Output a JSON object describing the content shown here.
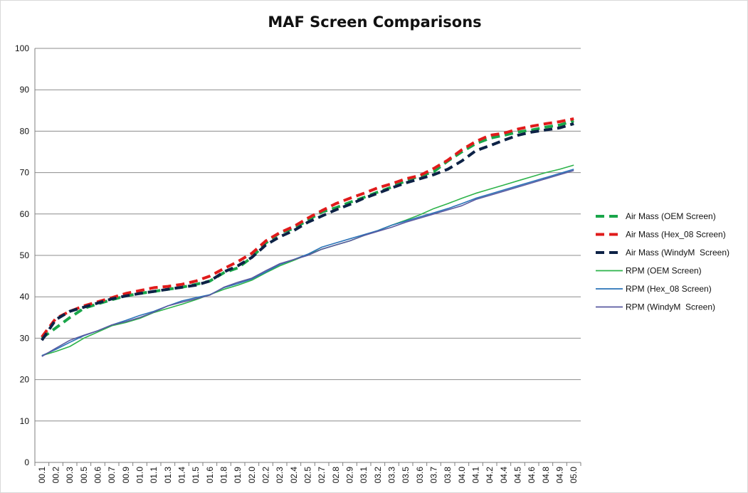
{
  "chart_data": {
    "type": "line",
    "title": "MAF Screen Comparisons",
    "xlabel": "",
    "ylabel": "",
    "ylim": [
      0,
      100
    ],
    "yticks": [
      0,
      10,
      20,
      30,
      40,
      50,
      60,
      70,
      80,
      90,
      100
    ],
    "grid": true,
    "legend_position": "right",
    "categories": [
      "00.1",
      "00.2",
      "00.3",
      "00.5",
      "00.6",
      "00.7",
      "00.9",
      "01.0",
      "01.1",
      "01.3",
      "01.4",
      "01.5",
      "01.6",
      "01.8",
      "01.9",
      "02.0",
      "02.2",
      "02.3",
      "02.4",
      "02.5",
      "02.7",
      "02.8",
      "02.9",
      "03.1",
      "03.2",
      "03.3",
      "03.5",
      "03.6",
      "03.7",
      "03.8",
      "04.0",
      "04.1",
      "04.2",
      "04.4",
      "04.5",
      "04.6",
      "04.8",
      "04.9",
      "05.0"
    ],
    "series": [
      {
        "name": "Air Mass (OEM Screen)",
        "color": "#1aa64a",
        "style": "dashed",
        "values": [
          30.0,
          32.5,
          35.0,
          37.2,
          38.3,
          39.3,
          40.2,
          40.8,
          41.3,
          41.8,
          42.3,
          43.0,
          43.8,
          45.8,
          47.0,
          49.5,
          53.0,
          55.5,
          56.5,
          58.5,
          60.5,
          61.5,
          62.8,
          64.0,
          65.3,
          66.5,
          68.0,
          69.2,
          70.2,
          72.8,
          75.0,
          77.0,
          78.3,
          79.0,
          79.8,
          80.3,
          81.0,
          81.5,
          82.5
        ]
      },
      {
        "name": "Air Mass (Hex_08 Screen)",
        "color": "#e01b1b",
        "style": "dashed",
        "values": [
          30.3,
          34.8,
          36.5,
          37.8,
          38.8,
          39.8,
          40.8,
          41.5,
          42.2,
          42.5,
          43.0,
          43.8,
          45.0,
          46.8,
          48.5,
          50.5,
          53.5,
          55.5,
          57.0,
          59.0,
          60.8,
          62.5,
          63.8,
          65.0,
          66.3,
          67.3,
          68.5,
          69.3,
          71.0,
          73.0,
          75.5,
          77.5,
          79.0,
          79.5,
          80.5,
          81.2,
          81.8,
          82.3,
          83.0
        ]
      },
      {
        "name": "Air Mass (WindyM  Screen)",
        "color": "#0d2246",
        "style": "dashed",
        "values": [
          29.5,
          34.5,
          36.5,
          37.5,
          38.5,
          39.5,
          40.2,
          40.8,
          41.3,
          41.8,
          42.3,
          42.8,
          43.8,
          46.0,
          47.5,
          49.5,
          52.5,
          54.5,
          56.0,
          58.0,
          59.5,
          61.0,
          62.3,
          63.8,
          65.0,
          66.3,
          67.5,
          68.5,
          69.5,
          70.8,
          72.8,
          75.3,
          76.5,
          77.8,
          79.0,
          79.8,
          80.3,
          80.8,
          81.8
        ]
      },
      {
        "name": "RPM (OEM Screen)",
        "color": "#2db34a",
        "style": "solid",
        "values": [
          25.8,
          26.8,
          28.0,
          30.0,
          31.5,
          33.0,
          33.8,
          34.8,
          36.2,
          37.2,
          38.2,
          39.3,
          40.5,
          41.8,
          42.8,
          44.0,
          45.8,
          47.5,
          48.8,
          50.2,
          51.5,
          52.5,
          53.5,
          54.8,
          56.0,
          57.3,
          58.5,
          59.8,
          61.3,
          62.5,
          63.8,
          65.0,
          66.0,
          67.0,
          68.0,
          69.0,
          70.0,
          70.8,
          71.8
        ]
      },
      {
        "name": "RPM (Hex_08 Screen)",
        "color": "#2a73b8",
        "style": "solid",
        "values": [
          25.8,
          27.3,
          29.0,
          30.6,
          31.8,
          33.2,
          34.3,
          35.5,
          36.5,
          37.8,
          39.0,
          39.8,
          40.5,
          42.2,
          43.2,
          44.3,
          46.0,
          47.8,
          49.0,
          50.3,
          52.0,
          53.0,
          54.0,
          55.0,
          56.0,
          57.3,
          58.3,
          59.3,
          60.3,
          61.3,
          62.5,
          63.8,
          64.8,
          65.8,
          66.8,
          67.8,
          68.8,
          69.8,
          70.8
        ]
      },
      {
        "name": "RPM (WindyM  Screen)",
        "color": "#5a5aa0",
        "style": "solid",
        "values": [
          25.6,
          27.6,
          29.5,
          30.7,
          31.8,
          33.2,
          34.0,
          35.0,
          36.3,
          37.8,
          38.7,
          39.5,
          40.4,
          42.3,
          43.5,
          44.5,
          46.3,
          48.0,
          49.0,
          50.0,
          51.5,
          52.5,
          53.5,
          54.8,
          55.8,
          56.8,
          58.0,
          59.0,
          60.0,
          61.0,
          62.0,
          63.5,
          64.5,
          65.5,
          66.5,
          67.5,
          68.5,
          69.5,
          70.5
        ]
      }
    ]
  }
}
